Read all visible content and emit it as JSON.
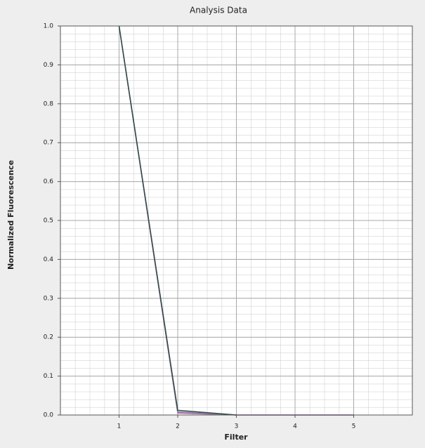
{
  "chart_data": {
    "type": "line",
    "title": "Analysis Data",
    "x_label": "Filter",
    "y_label": "Normalized Fluorescence",
    "x": [
      1,
      2,
      3,
      4,
      5
    ],
    "series": [
      {
        "color": "#c05fa8",
        "values": [
          1.0,
          0.005,
          0.0,
          0.0,
          0.0
        ]
      },
      {
        "color": "#7f86a0",
        "values": [
          1.0,
          0.008,
          0.0,
          0.0,
          0.0
        ]
      },
      {
        "color": "#2f4a46",
        "values": [
          1.0,
          0.012,
          0.0,
          null,
          null
        ]
      }
    ],
    "xlim": [
      0,
      6
    ],
    "xticks": [
      1,
      2,
      3,
      4,
      5
    ],
    "ylim": [
      0,
      1.0
    ],
    "yticks": [
      {
        "value": 0,
        "label": "0.0"
      },
      0.1,
      0.2,
      0.3,
      0.4,
      0.5,
      0.6,
      0.7,
      0.8,
      0.9,
      {
        "value": 1,
        "label": "1.0"
      }
    ],
    "grid": true
  }
}
